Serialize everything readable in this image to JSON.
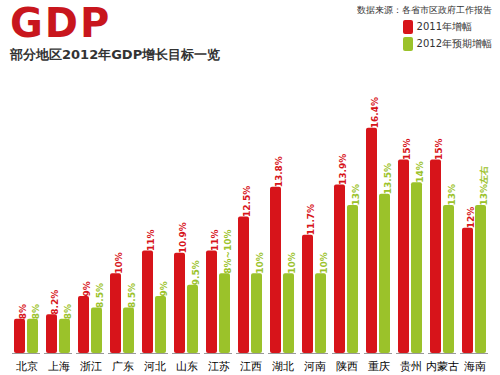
{
  "chart_data": {
    "type": "bar",
    "title": "GDP",
    "subtitle": "部分地区2012年GDP增长目标一览",
    "annotations": [
      "数据来源：各省市区政府工作报告"
    ],
    "categories": [
      "北京",
      "上海",
      "浙江",
      "广东",
      "河北",
      "山东",
      "江苏",
      "江西",
      "湖北",
      "河南",
      "陕西",
      "重庆",
      "贵州",
      "内蒙古",
      "海南"
    ],
    "series": [
      {
        "name": "2011年增幅",
        "color": "#d7141a",
        "values": [
          8,
          8.2,
          9,
          10,
          11,
          10.9,
          11,
          12.5,
          13.8,
          11.7,
          13.9,
          16.4,
          15,
          15,
          12
        ],
        "value_labels": [
          "8%",
          "8.2%",
          "9%",
          "10%",
          "11%",
          "10.9%",
          "11%",
          "12.5%",
          "13.8%",
          "11.7%",
          "13.9%",
          "16.4%",
          "15%",
          "15%",
          "12%"
        ]
      },
      {
        "name": "2012年预期增幅",
        "color": "#9bc22a",
        "values": [
          8,
          8,
          8.5,
          8.5,
          9,
          9.5,
          10,
          10,
          10,
          10,
          13,
          13.5,
          14,
          13,
          13
        ],
        "value_labels": [
          "8%",
          "8%",
          "8.5%",
          "8.5%",
          "9%",
          "9.5%",
          "8%~10%",
          "10%",
          "10%",
          "10%",
          "13%",
          "13.5%",
          "14%",
          "13%",
          "13%左右"
        ]
      }
    ],
    "ylim": [
      6.5,
      17
    ],
    "data_labels": true,
    "tick_labels": "x",
    "legend": "top-right"
  }
}
